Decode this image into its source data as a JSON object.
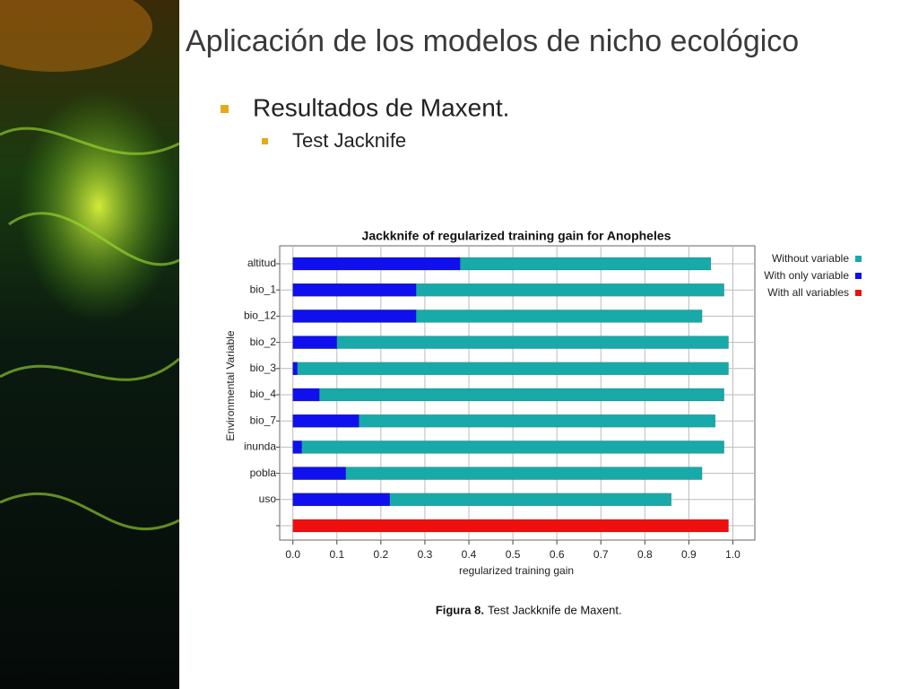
{
  "slide": {
    "title": "Aplicación de los modelos de nicho ecológico",
    "bullet": "Resultados de Maxent.",
    "sub_bullet": "Test Jacknife",
    "caption_label": "Figura  8.",
    "caption_text": "Test Jackknife de Maxent."
  },
  "chart_data": {
    "type": "hbar",
    "title": "Jackknife of regularized training gain for Anopheles",
    "x_label": "regularized training gain",
    "y_label": "Environmental Variable",
    "categories": [
      "altitud",
      "bio_1",
      "bio_12",
      "bio_2",
      "bio_3",
      "bio_4",
      "bio_7",
      "inunda",
      "pobla",
      "uso",
      null
    ],
    "series": [
      {
        "name": "Without variable",
        "color": "#18a9a9",
        "values": [
          0.95,
          0.98,
          0.93,
          0.99,
          0.99,
          0.98,
          0.96,
          0.98,
          0.93,
          0.86,
          null
        ]
      },
      {
        "name": "With only variable",
        "color": "#1010ee",
        "values": [
          0.38,
          0.28,
          0.28,
          0.1,
          0.01,
          0.06,
          0.15,
          0.02,
          0.12,
          0.22,
          null
        ]
      },
      {
        "name": "With all variables",
        "color": "#ee1010",
        "values": [
          null,
          null,
          null,
          null,
          null,
          null,
          null,
          null,
          null,
          null,
          0.99
        ]
      }
    ],
    "xlim": [
      -0.03,
      1.05
    ],
    "xticks": [
      {
        "value": 0,
        "label": "0.0"
      },
      0.1,
      0.2,
      0.3,
      0.4,
      0.5,
      0.6,
      0.7,
      0.8,
      0.9,
      {
        "value": 1,
        "label": "1.0"
      }
    ],
    "grid": true,
    "legend": "right"
  }
}
